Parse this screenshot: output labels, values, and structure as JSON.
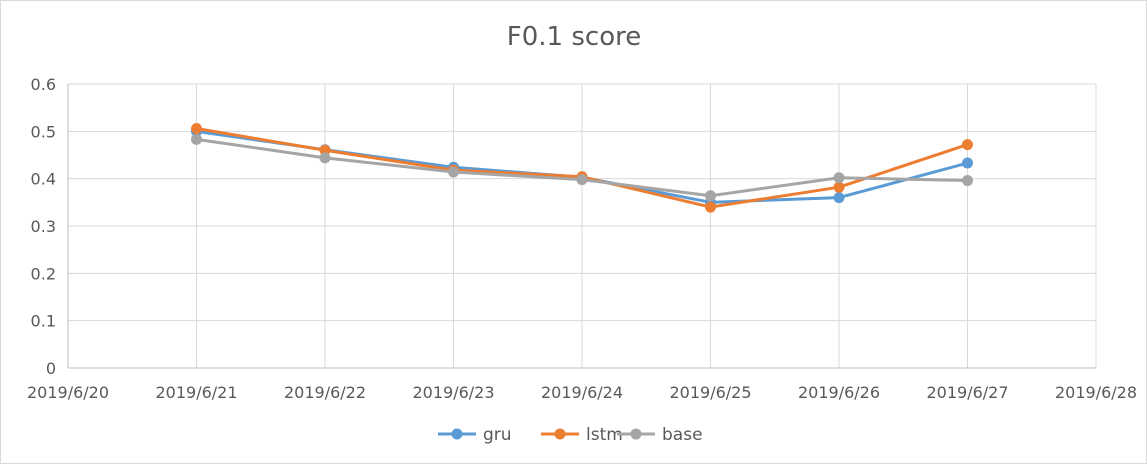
{
  "chart_data": {
    "type": "line",
    "title": "F0.1 score",
    "xlabel": "",
    "ylabel": "",
    "x": [
      "2019/6/20",
      "2019/6/21",
      "2019/6/22",
      "2019/6/23",
      "2019/6/24",
      "2019/6/25",
      "2019/6/26",
      "2019/6/27",
      "2019/6/28"
    ],
    "ylim": [
      0,
      0.6
    ],
    "yticks": [
      "0",
      "0.1",
      "0.2",
      "0.3",
      "0.4",
      "0.5",
      "0.6"
    ],
    "grid": true,
    "legend": "bottom",
    "series": [
      {
        "name": "gru",
        "color": "#5b9bd5",
        "values": [
          null,
          0.5,
          0.461,
          0.424,
          0.403,
          0.35,
          0.36,
          0.433,
          null
        ]
      },
      {
        "name": "lstm",
        "color": "#ed7d31",
        "values": [
          null,
          0.506,
          0.46,
          0.418,
          0.404,
          0.34,
          0.382,
          0.472,
          null
        ]
      },
      {
        "name": "base",
        "color": "#a5a5a5",
        "values": [
          null,
          0.483,
          0.444,
          0.414,
          0.398,
          0.364,
          0.402,
          0.396,
          null
        ]
      }
    ]
  }
}
